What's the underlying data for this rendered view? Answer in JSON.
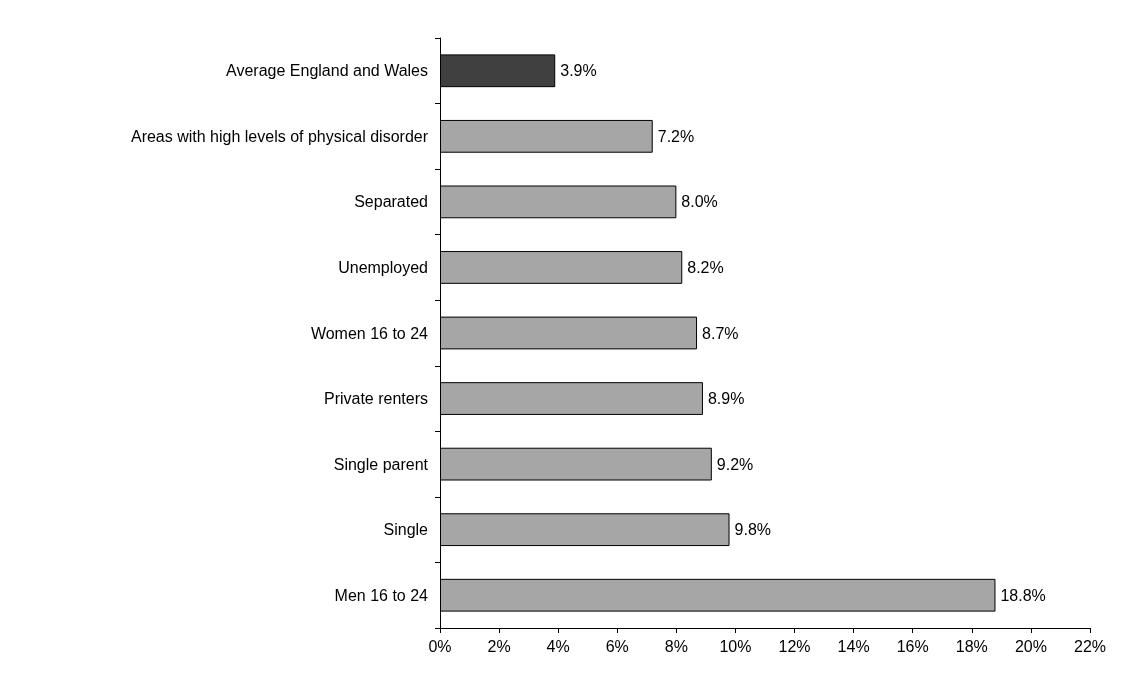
{
  "chart_data": {
    "type": "bar",
    "orientation": "horizontal",
    "categories": [
      "Average England and Wales",
      "Areas with high levels of physical disorder",
      "Separated",
      "Unemployed",
      "Women 16 to 24",
      "Private renters",
      "Single parent",
      "Single",
      "Men 16 to 24"
    ],
    "values": [
      3.9,
      7.2,
      8.0,
      8.2,
      8.7,
      8.9,
      9.2,
      9.8,
      18.8
    ],
    "value_labels": [
      "3.9%",
      "7.2%",
      "8.0%",
      "8.2%",
      "8.7%",
      "8.9%",
      "9.2%",
      "9.8%",
      "18.8%"
    ],
    "colors": [
      "#404040",
      "#a6a6a6",
      "#a6a6a6",
      "#a6a6a6",
      "#a6a6a6",
      "#a6a6a6",
      "#a6a6a6",
      "#a6a6a6",
      "#a6a6a6"
    ],
    "xlim": [
      0,
      22
    ],
    "xticks": [
      {
        "value": 0,
        "label": "0%"
      },
      {
        "value": 2,
        "label": "2%"
      },
      {
        "value": 4,
        "label": "4%"
      },
      {
        "value": 6,
        "label": "6%"
      },
      {
        "value": 8,
        "label": "8%"
      },
      {
        "value": 10,
        "label": "10%"
      },
      {
        "value": 12,
        "label": "12%"
      },
      {
        "value": 14,
        "label": "14%"
      },
      {
        "value": 16,
        "label": "16%"
      },
      {
        "value": 18,
        "label": "18%"
      },
      {
        "value": 20,
        "label": "20%"
      },
      {
        "value": 22,
        "label": "22%"
      }
    ],
    "grid": false
  }
}
